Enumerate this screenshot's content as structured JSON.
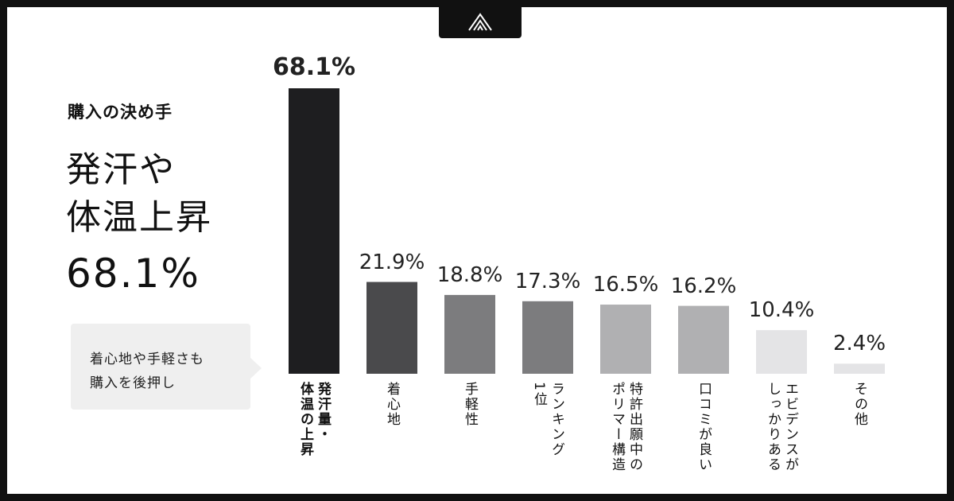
{
  "intro": {
    "title": "購入の決め手",
    "headline": [
      "発汗や",
      "体温上昇",
      "68.1%"
    ],
    "bubble": [
      "着心地や手軽さも",
      "購入を後押し"
    ]
  },
  "chart_data": {
    "type": "bar",
    "categories": [
      "発汗量・\n体温の上昇",
      "着心地",
      "手軽性",
      "ランキング\n1位",
      "特許出願中の\nポリマー構造",
      "口コミが良い",
      "エビデンスが\nしっかりある",
      "その他"
    ],
    "values": [
      68.1,
      21.9,
      18.8,
      17.3,
      16.5,
      16.2,
      10.4,
      2.4
    ],
    "value_labels": [
      "68.1%",
      "21.9%",
      "18.8%",
      "17.3%",
      "16.5%",
      "16.2%",
      "10.4%",
      "2.4%"
    ],
    "colors": [
      "#1e1e20",
      "#4a4a4c",
      "#7c7c7e",
      "#7c7c7e",
      "#b0b0b2",
      "#b0b0b2",
      "#e4e4e6",
      "#e4e4e6"
    ],
    "ylim": [
      0,
      70
    ]
  }
}
